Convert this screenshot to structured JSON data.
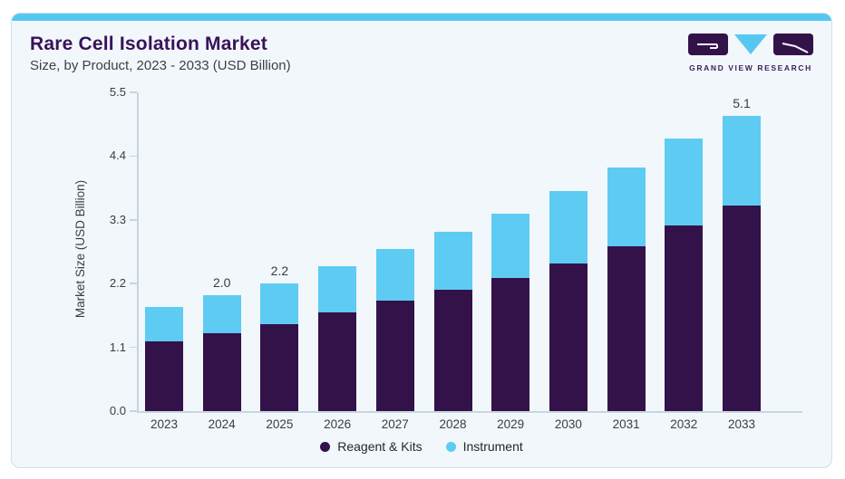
{
  "header": {
    "title": "Rare Cell Isolation Market",
    "subtitle": "Size, by Product, 2023 - 2033 (USD Billion)"
  },
  "logo": {
    "icon": "grand-view-research-logo",
    "text": "GRAND VIEW RESEARCH"
  },
  "colors": {
    "accent_bar": "#55C8F1",
    "card_background": "#F1F7FA",
    "card_border": "#CFE0EA",
    "title_text": "#3A1259",
    "reagent_kits_purple": "#33124A",
    "instrument_cyan": "#5ECBF3",
    "axis_line": "#C9D5DE",
    "tick_text": "#3C3C44"
  },
  "chart_data": {
    "type": "bar",
    "stacked": true,
    "title": "Rare Cell Isolation Market",
    "subtitle": "Size, by Product, 2023 - 2033 (USD Billion)",
    "categories": [
      "2023",
      "2024",
      "2025",
      "2026",
      "2027",
      "2028",
      "2029",
      "2030",
      "2031",
      "2032",
      "2033"
    ],
    "series": [
      {
        "name": "Reagent & Kits",
        "color": "#33124A",
        "values": [
          1.2,
          1.35,
          1.5,
          1.7,
          1.9,
          2.1,
          2.3,
          2.55,
          2.85,
          3.2,
          3.55
        ]
      },
      {
        "name": "Instrument",
        "color": "#5ECBF3",
        "values": [
          0.6,
          0.65,
          0.7,
          0.8,
          0.9,
          1.0,
          1.1,
          1.25,
          1.35,
          1.5,
          1.55
        ]
      }
    ],
    "totals": [
      1.8,
      2.0,
      2.2,
      2.5,
      2.8,
      3.1,
      3.4,
      3.8,
      4.2,
      4.7,
      5.1
    ],
    "bar_labels": [
      {
        "category": "2024",
        "text": "2.0"
      },
      {
        "category": "2025",
        "text": "2.2"
      },
      {
        "category": "2033",
        "text": "5.1"
      }
    ],
    "xlabel": "",
    "ylabel": "Market Size (USD Billion)",
    "yticks": [
      "0.0",
      "1.1",
      "2.2",
      "3.3",
      "4.4",
      "5.5"
    ],
    "ylim": [
      0,
      5.5
    ],
    "grid": false,
    "legend_position": "bottom"
  }
}
